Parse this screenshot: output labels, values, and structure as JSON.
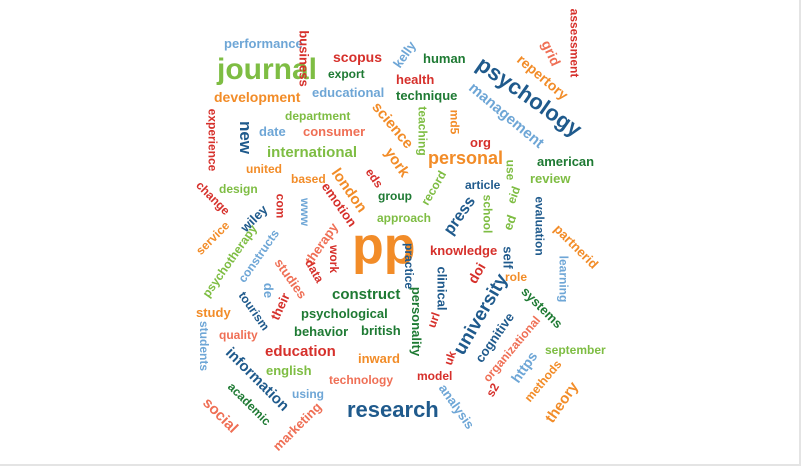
{
  "palette": {
    "blue": "#1f5a8c",
    "lightblue": "#6ea6d6",
    "orange": "#f28c28",
    "green": "#7ebd43",
    "darkgreen": "#1e7a33",
    "red": "#d6302b",
    "salmon": "#ef6f55"
  },
  "words": [
    "performance",
    "journal",
    "development",
    "business",
    "scopus",
    "export",
    "educational",
    "kelly",
    "human",
    "health",
    "technique",
    "psychology",
    "management",
    "repertory",
    "grid",
    "assessment",
    "experience",
    "new",
    "date",
    "department",
    "consumer",
    "science",
    "teaching",
    "md5",
    "org",
    "york",
    "personal",
    "eds",
    "american",
    "review",
    "use",
    "eid",
    "change",
    "design",
    "united",
    "international",
    "based",
    "london",
    "emotion",
    "group",
    "record",
    "article",
    "press",
    "school",
    "ed",
    "evaluation",
    "service",
    "wiley",
    "com",
    "www",
    "approach",
    "psychotherapy",
    "constructs",
    "therapy",
    "pp",
    "practice",
    "knowledge",
    "self",
    "partnerid",
    "learning",
    "work",
    "data",
    "studies",
    "de",
    "their",
    "clinical",
    "doi",
    "role",
    "university",
    "construct",
    "personality",
    "systems",
    "study",
    "tourism",
    "psychological",
    "url",
    "quality",
    "behavior",
    "british",
    "cognitive",
    "students",
    "education",
    "organizational",
    "september",
    "inward",
    "uk",
    "english",
    "information",
    "https",
    "methods",
    "technology",
    "model",
    "academic",
    "using",
    "s2",
    "analysis",
    "theory",
    "social",
    "research",
    "marketing"
  ]
}
